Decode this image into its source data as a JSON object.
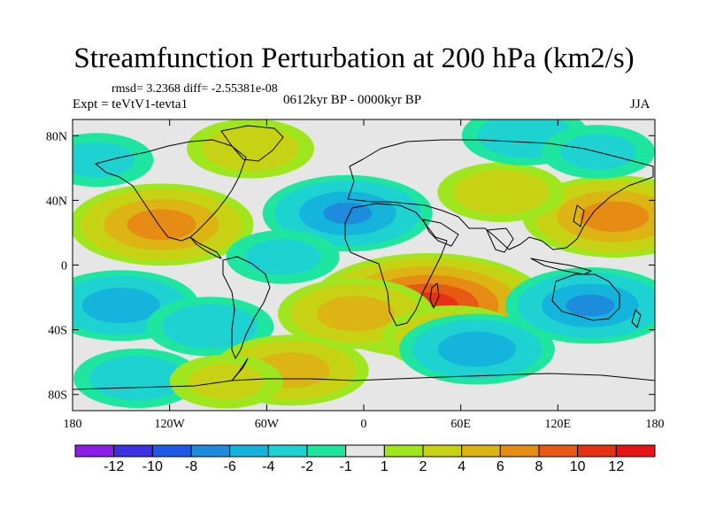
{
  "chart_data": {
    "type": "heatmap",
    "title": "Streamfunction Perturbation at 200 hPa (km2/s)",
    "stats": "rmsd= 3.2368 diff= -2.55381e-08",
    "left_label": "Expt = teVtV1-tevta1",
    "center_label": "0612kyr BP - 0000kyr BP",
    "right_label": "JJA",
    "units": "km2/s",
    "xlim": [
      -180,
      180
    ],
    "ylim": [
      -90,
      90
    ],
    "x_ticks": [
      {
        "value": -180,
        "label": "180"
      },
      {
        "value": -120,
        "label": "120W"
      },
      {
        "value": -60,
        "label": "60W"
      },
      {
        "value": 0,
        "label": "0"
      },
      {
        "value": 60,
        "label": "60E"
      },
      {
        "value": 120,
        "label": "120E"
      },
      {
        "value": 180,
        "label": "180"
      }
    ],
    "y_ticks": [
      {
        "value": 80,
        "label": "80N"
      },
      {
        "value": 40,
        "label": "40N"
      },
      {
        "value": 0,
        "label": "0"
      },
      {
        "value": -40,
        "label": "40S"
      },
      {
        "value": -80,
        "label": "80S"
      }
    ],
    "colorbar": {
      "boundaries": [
        "-12",
        "-10",
        "-8",
        "-6",
        "-4",
        "-2",
        "-1",
        "1",
        "2",
        "4",
        "6",
        "8",
        "10",
        "12"
      ],
      "colors": [
        "#8c1ee6",
        "#3c32e0",
        "#1e5ae6",
        "#1e8cdc",
        "#14b4dc",
        "#1ed2d2",
        "#1ee6a0",
        "#e6e6e6",
        "#a0e61e",
        "#c8d214",
        "#dcb414",
        "#e68c14",
        "#e65a14",
        "#e63214",
        "#e61414"
      ]
    },
    "anomalies": [
      {
        "region": "South Africa / Indian Ocean",
        "lon": 40,
        "lat": -25,
        "value": 11
      },
      {
        "region": "South Atlantic",
        "lon": -5,
        "lat": -30,
        "value": 5
      },
      {
        "region": "Southern Africa east",
        "lon": 55,
        "lat": -45,
        "value": 4
      },
      {
        "region": "North Atlantic / North Africa",
        "lon": -10,
        "lat": 32,
        "value": -6
      },
      {
        "region": "Southern Indian Ocean",
        "lon": 70,
        "lat": -52,
        "value": -5
      },
      {
        "region": "Western Pacific north",
        "lon": 155,
        "lat": 30,
        "value": 7
      },
      {
        "region": "Eastern Pacific north",
        "lon": -125,
        "lat": 25,
        "value": 7
      },
      {
        "region": "Australia",
        "lon": 140,
        "lat": -25,
        "value": -6
      },
      {
        "region": "South Pacific",
        "lon": -150,
        "lat": -25,
        "value": -5
      },
      {
        "region": "Eastern South Pacific",
        "lon": -95,
        "lat": -38,
        "value": -3
      },
      {
        "region": "Eurasia north",
        "lon": 85,
        "lat": 45,
        "value": 3
      },
      {
        "region": "Greenland / Canada",
        "lon": -70,
        "lat": 72,
        "value": 3
      },
      {
        "region": "Arctic Siberia",
        "lon": 100,
        "lat": 80,
        "value": -3
      },
      {
        "region": "North Pacific high latitudes",
        "lon": 145,
        "lat": 70,
        "value": -2
      },
      {
        "region": "Alaska",
        "lon": -165,
        "lat": 65,
        "value": -2
      },
      {
        "region": "Amazon",
        "lon": -50,
        "lat": 5,
        "value": -2
      },
      {
        "region": "Antarctica Atlantic sector",
        "lon": -45,
        "lat": -65,
        "value": 5
      },
      {
        "region": "Antarctica Pacific sector",
        "lon": -140,
        "lat": -70,
        "value": -3
      },
      {
        "region": "Antarctica Pacific east",
        "lon": -85,
        "lat": -72,
        "value": 2
      }
    ]
  }
}
